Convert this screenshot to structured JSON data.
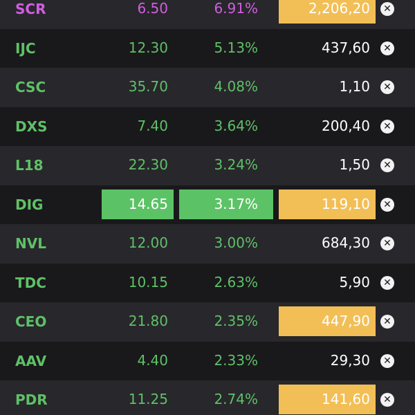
{
  "colors": {
    "green": "#5fc167",
    "magenta": "#d25ee0",
    "white": "#ffffff",
    "highlight_green": "#5cc266",
    "highlight_yellow": "#f2bf56"
  },
  "rows": [
    {
      "symbol": "SCR",
      "price": "6.50",
      "change": "6.91%",
      "volume": "2,206,20",
      "symbol_color": "magenta",
      "value_color": "magenta",
      "volume_highlight": true,
      "value_highlight": false
    },
    {
      "symbol": "IJC",
      "price": "12.30",
      "change": "5.13%",
      "volume": "437,60",
      "symbol_color": "green",
      "value_color": "green",
      "volume_highlight": false,
      "value_highlight": false
    },
    {
      "symbol": "CSC",
      "price": "35.70",
      "change": "4.08%",
      "volume": "1,10",
      "symbol_color": "green",
      "value_color": "green",
      "volume_highlight": false,
      "value_highlight": false
    },
    {
      "symbol": "DXS",
      "price": "7.40",
      "change": "3.64%",
      "volume": "200,40",
      "symbol_color": "green",
      "value_color": "green",
      "volume_highlight": false,
      "value_highlight": false
    },
    {
      "symbol": "L18",
      "price": "22.30",
      "change": "3.24%",
      "volume": "1,50",
      "symbol_color": "green",
      "value_color": "green",
      "volume_highlight": false,
      "value_highlight": false
    },
    {
      "symbol": "DIG",
      "price": "14.65",
      "change": "3.17%",
      "volume": "119,10",
      "symbol_color": "green",
      "value_color": "green",
      "volume_highlight": true,
      "value_highlight": true
    },
    {
      "symbol": "NVL",
      "price": "12.00",
      "change": "3.00%",
      "volume": "684,30",
      "symbol_color": "green",
      "value_color": "green",
      "volume_highlight": false,
      "value_highlight": false
    },
    {
      "symbol": "TDC",
      "price": "10.15",
      "change": "2.63%",
      "volume": "5,90",
      "symbol_color": "green",
      "value_color": "green",
      "volume_highlight": false,
      "value_highlight": false
    },
    {
      "symbol": "CEO",
      "price": "21.80",
      "change": "2.35%",
      "volume": "447,90",
      "symbol_color": "green",
      "value_color": "green",
      "volume_highlight": true,
      "value_highlight": false
    },
    {
      "symbol": "AAV",
      "price": "4.40",
      "change": "2.33%",
      "volume": "29,30",
      "symbol_color": "green",
      "value_color": "green",
      "volume_highlight": false,
      "value_highlight": false
    },
    {
      "symbol": "PDR",
      "price": "11.25",
      "change": "2.74%",
      "volume": "141,60",
      "symbol_color": "green",
      "value_color": "green",
      "volume_highlight": true,
      "value_highlight": false
    }
  ],
  "icons": {
    "remove": "close-circle-icon"
  },
  "remove_glyph": "✕"
}
